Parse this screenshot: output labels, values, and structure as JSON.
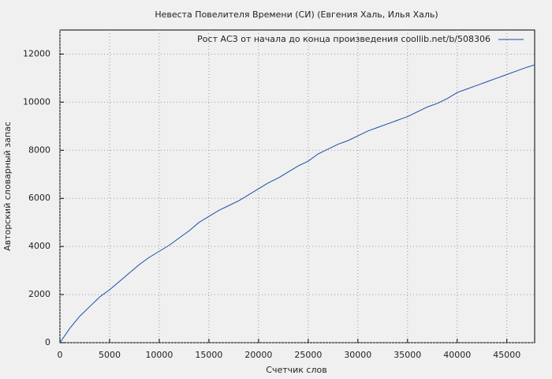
{
  "chart_data": {
    "type": "line",
    "title": "Невеста Повелителя Времени (СИ) (Евгения Халь, Илья Халь)",
    "x_label": "Счетчик слов",
    "y_label": "Авторский словарный запас",
    "xlim": [
      0,
      47800
    ],
    "ylim": [
      0,
      13000
    ],
    "xticks": [
      0,
      5000,
      10000,
      15000,
      20000,
      25000,
      30000,
      35000,
      40000,
      45000
    ],
    "yticks": [
      0,
      2000,
      4000,
      6000,
      8000,
      10000,
      12000
    ],
    "grid": true,
    "legend": "top-right",
    "x": [
      0,
      1000,
      2000,
      3000,
      4000,
      5000,
      6000,
      7000,
      8000,
      9000,
      10000,
      11000,
      12000,
      13000,
      14000,
      15000,
      16000,
      17000,
      18000,
      19000,
      20000,
      21000,
      22000,
      23000,
      24000,
      25000,
      26000,
      27000,
      28000,
      29000,
      30000,
      31000,
      32000,
      33000,
      34000,
      35000,
      36000,
      37000,
      38000,
      39000,
      40000,
      41000,
      42000,
      43000,
      44000,
      45000,
      46000,
      47000,
      47800
    ],
    "series": [
      {
        "name": "Рост АСЗ от начала до конца произведения coollib.net/b/508306",
        "color": "#1a4da8",
        "values": [
          0,
          600,
          1100,
          1500,
          1900,
          2200,
          2550,
          2900,
          3250,
          3550,
          3800,
          4050,
          4350,
          4650,
          5000,
          5250,
          5500,
          5700,
          5900,
          6150,
          6400,
          6650,
          6850,
          7100,
          7350,
          7550,
          7850,
          8050,
          8250,
          8400,
          8600,
          8800,
          8950,
          9100,
          9250,
          9400,
          9600,
          9800,
          9950,
          10150,
          10400,
          10550,
          10700,
          10850,
          11000,
          11150,
          11300,
          11450,
          11550
        ]
      }
    ]
  }
}
